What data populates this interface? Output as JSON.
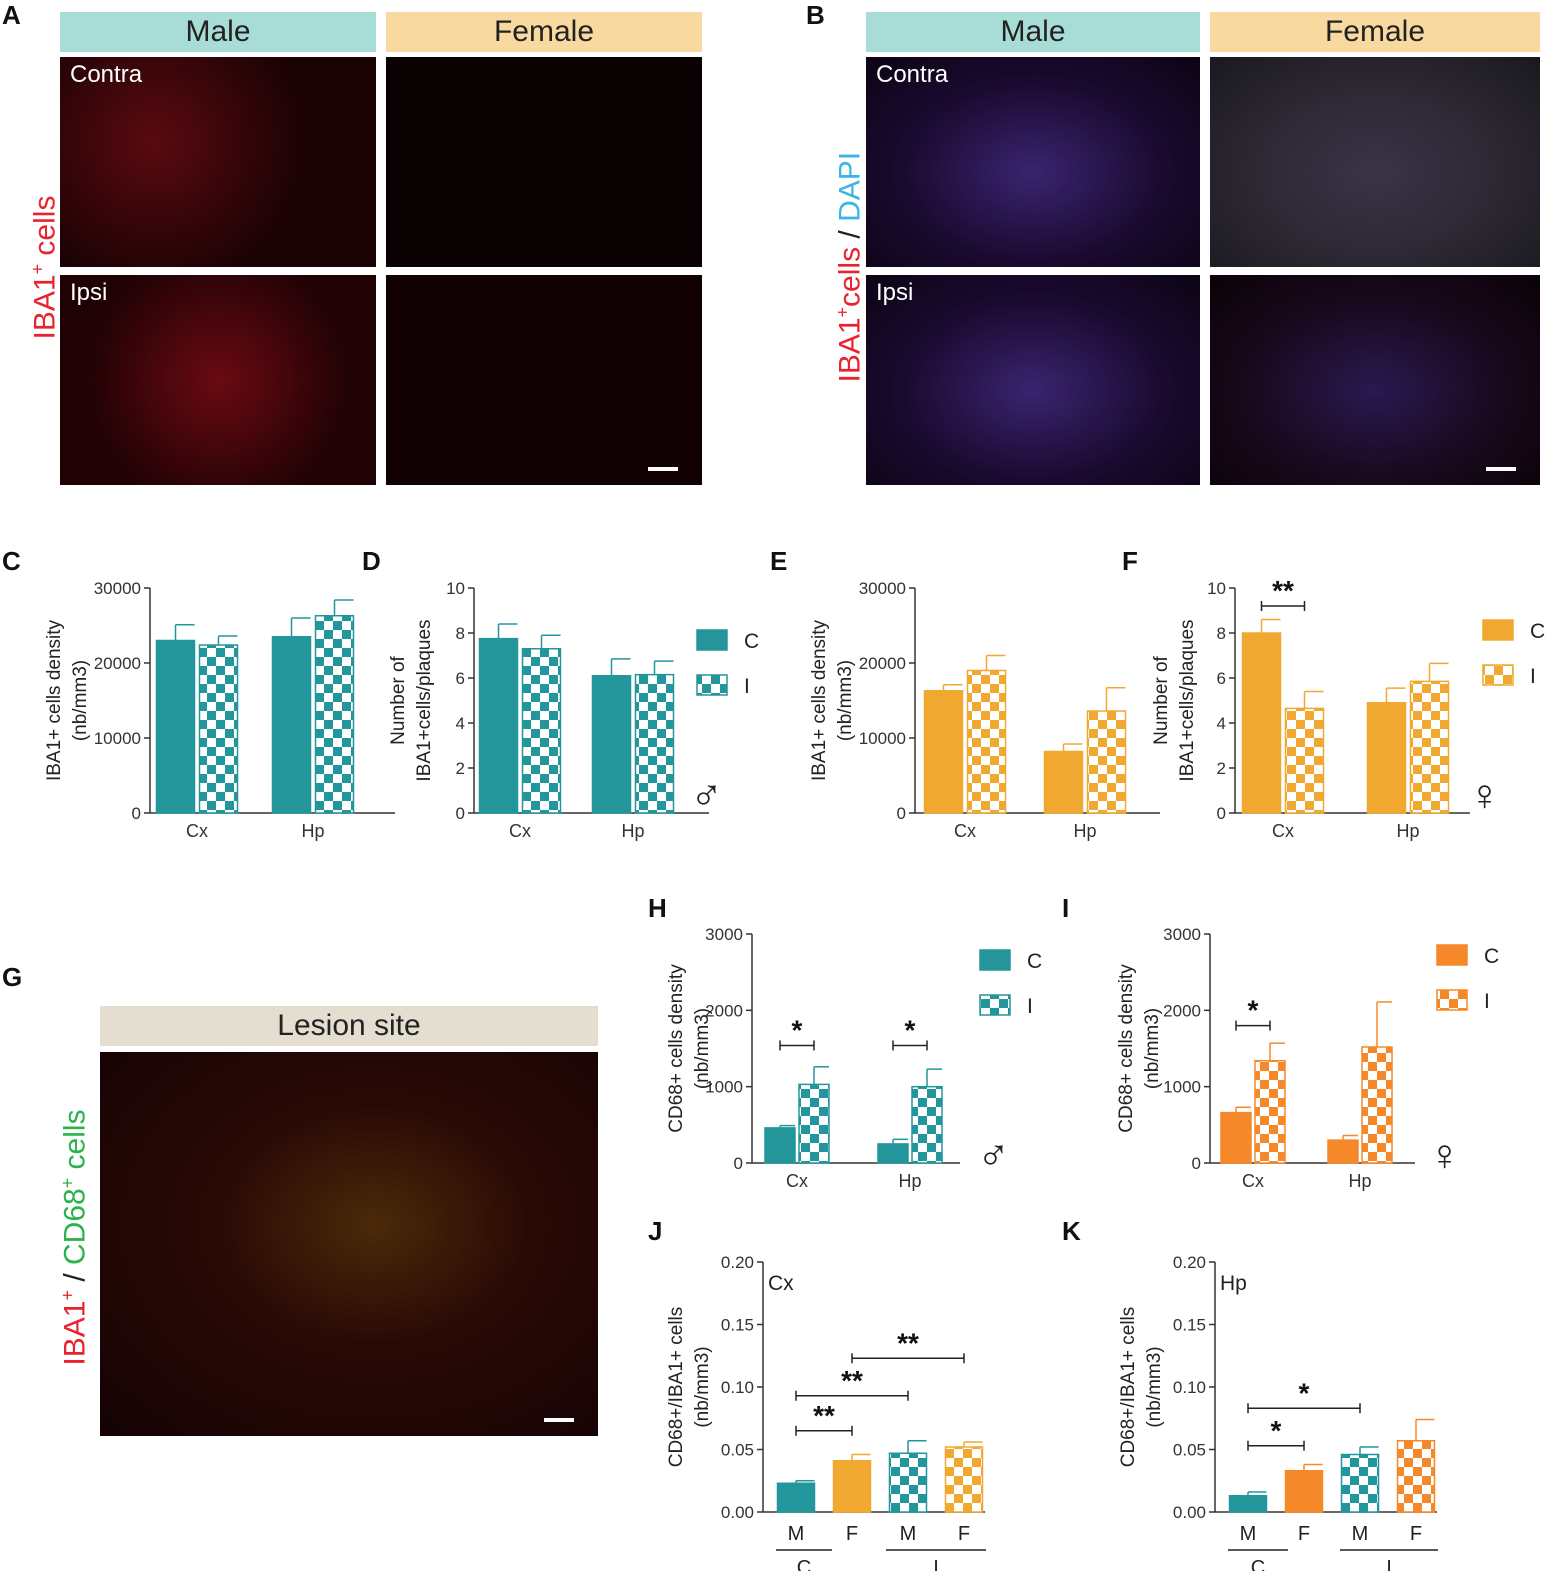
{
  "panels": {
    "A": {
      "letter": "A",
      "male": "Male",
      "female": "Female",
      "contra": "Contra",
      "ipsi": "Ipsi",
      "ylabel_main": "IBA1",
      "ylabel_sup": "+",
      "ylabel_rest": " cells"
    },
    "B": {
      "letter": "B",
      "male": "Male",
      "female": "Female",
      "contra": "Contra",
      "ipsi": "Ipsi",
      "ylabel_a": "IBA1",
      "ylabel_sup": "+",
      "ylabel_b": "cells",
      "ylabel_sep": " / ",
      "ylabel_c": "DAPI"
    },
    "G": {
      "letter": "G",
      "header": "Lesion site",
      "ylabel_a": "IBA1",
      "ylabel_sup1": "+",
      "ylabel_sep": " / ",
      "ylabel_b": "CD68",
      "ylabel_sup2": "+",
      "ylabel_c": " cells"
    }
  },
  "colors": {
    "teal": "#23969b",
    "gold": "#f0a830",
    "orange": "#f5892a",
    "red": "#e8232f",
    "blue": "#3ab4e6",
    "green": "#2cb24a"
  },
  "chart_data": [
    {
      "id": "C",
      "type": "bar",
      "color": "teal",
      "categories": [
        "Cx",
        "Hp"
      ],
      "series": [
        {
          "values": [
            23000,
            23500
          ],
          "errors": [
            2100,
            2500
          ],
          "pattern": "solid"
        },
        {
          "values": [
            22400,
            26300
          ],
          "errors": [
            1200,
            2100
          ],
          "pattern": "checker"
        }
      ],
      "ylim": [
        0,
        30000
      ],
      "ticks": [
        0,
        10000,
        20000,
        30000
      ],
      "ylabel_lines": [
        "IBA1+ cells density",
        "(nb/mm3)"
      ]
    },
    {
      "id": "D",
      "type": "bar",
      "color": "teal",
      "categories": [
        "Cx",
        "Hp"
      ],
      "series": [
        {
          "values": [
            7.75,
            6.1
          ],
          "errors": [
            0.65,
            0.75
          ],
          "pattern": "solid"
        },
        {
          "values": [
            7.3,
            6.15
          ],
          "errors": [
            0.6,
            0.6
          ],
          "pattern": "checker"
        }
      ],
      "ylim": [
        0,
        10
      ],
      "ticks": [
        0,
        2,
        4,
        6,
        8,
        10
      ],
      "ylabel_lines": [
        "Number of",
        "IBA1+cells/plaques"
      ],
      "legend": [
        "C",
        "I"
      ],
      "symbol": "♂"
    },
    {
      "id": "E",
      "type": "bar",
      "color": "gold",
      "categories": [
        "Cx",
        "Hp"
      ],
      "series": [
        {
          "values": [
            16300,
            8200
          ],
          "errors": [
            800,
            1000
          ],
          "pattern": "solid"
        },
        {
          "values": [
            19000,
            13600
          ],
          "errors": [
            2000,
            3100
          ],
          "pattern": "checker"
        }
      ],
      "ylim": [
        0,
        30000
      ],
      "ticks": [
        0,
        10000,
        20000,
        30000
      ],
      "ylabel_lines": [
        "IBA1+ cells density",
        "(nb/mm3)"
      ]
    },
    {
      "id": "F",
      "type": "bar",
      "color": "gold",
      "categories": [
        "Cx",
        "Hp"
      ],
      "series": [
        {
          "values": [
            8.0,
            4.9
          ],
          "errors": [
            0.6,
            0.65
          ],
          "pattern": "solid"
        },
        {
          "values": [
            4.65,
            5.85
          ],
          "errors": [
            0.75,
            0.8
          ],
          "pattern": "checker"
        }
      ],
      "ylim": [
        0,
        10
      ],
      "ticks": [
        0,
        2,
        4,
        6,
        8,
        10
      ],
      "ylabel_lines": [
        "Number of",
        "IBA1+cells/plaques"
      ],
      "legend": [
        "C",
        "I"
      ],
      "symbol": "♀",
      "sig": [
        {
          "label": "**",
          "from": [
            0,
            0
          ],
          "to": [
            0,
            1
          ],
          "y": 9.2
        }
      ]
    },
    {
      "id": "H",
      "type": "bar",
      "color": "teal",
      "categories": [
        "Cx",
        "Hp"
      ],
      "series": [
        {
          "values": [
            460,
            250
          ],
          "errors": [
            30,
            60
          ],
          "pattern": "solid"
        },
        {
          "values": [
            1030,
            1000
          ],
          "errors": [
            230,
            230
          ],
          "pattern": "checker"
        }
      ],
      "ylim": [
        0,
        3000
      ],
      "ticks": [
        0,
        1000,
        2000,
        3000
      ],
      "ylabel_lines": [
        "CD68+ cells density",
        "(nb/mm3)"
      ],
      "legend": [
        "C",
        "I"
      ],
      "symbol": "♂",
      "sig": [
        {
          "label": "*",
          "from": [
            0,
            0
          ],
          "to": [
            0,
            1
          ],
          "y": 1540
        },
        {
          "label": "*",
          "from": [
            1,
            0
          ],
          "to": [
            1,
            1
          ],
          "y": 1540
        }
      ]
    },
    {
      "id": "I",
      "type": "bar",
      "color": "orange",
      "categories": [
        "Cx",
        "Hp"
      ],
      "series": [
        {
          "values": [
            660,
            300
          ],
          "errors": [
            70,
            60
          ],
          "pattern": "solid"
        },
        {
          "values": [
            1340,
            1520
          ],
          "errors": [
            230,
            590
          ],
          "pattern": "checker"
        }
      ],
      "ylim": [
        0,
        3000
      ],
      "ticks": [
        0,
        1000,
        2000,
        3000
      ],
      "ylabel_lines": [
        "CD68+ cells density",
        "(nb/mm3)"
      ],
      "legend": [
        "C",
        "I"
      ],
      "symbol": "♀",
      "sig": [
        {
          "label": "*",
          "from": [
            0,
            0
          ],
          "to": [
            0,
            1
          ],
          "y": 1800
        }
      ]
    },
    {
      "id": "J",
      "type": "bar",
      "annotation": "Cx",
      "categories": [
        "M",
        "F",
        "M",
        "F"
      ],
      "groups": [
        "C",
        "I"
      ],
      "values": [
        0.023,
        0.041,
        0.047,
        0.052
      ],
      "errors": [
        0.002,
        0.005,
        0.01,
        0.004
      ],
      "colors": [
        "teal",
        "gold",
        "teal",
        "gold"
      ],
      "patterns": [
        "solid",
        "solid",
        "checker",
        "checker"
      ],
      "ylim": [
        0,
        0.2
      ],
      "ticks": [
        "0.00",
        "0.05",
        "0.10",
        "0.15",
        "0.20"
      ],
      "ylabel_lines": [
        "CD68+/IBA1+ cells",
        "(nb/mm3)"
      ],
      "sig": [
        {
          "label": "**",
          "from": 0,
          "to": 1,
          "y": 0.065
        },
        {
          "label": "**",
          "from": 0,
          "to": 2,
          "y": 0.093
        },
        {
          "label": "**",
          "from": 1,
          "to": 3,
          "y": 0.123
        }
      ]
    },
    {
      "id": "K",
      "type": "bar",
      "annotation": "Hp",
      "categories": [
        "M",
        "F",
        "M",
        "F"
      ],
      "groups": [
        "C",
        "I"
      ],
      "values": [
        0.013,
        0.033,
        0.046,
        0.057
      ],
      "errors": [
        0.003,
        0.005,
        0.006,
        0.017
      ],
      "colors": [
        "teal",
        "orange",
        "teal",
        "orange"
      ],
      "patterns": [
        "solid",
        "solid",
        "checker",
        "checker"
      ],
      "ylim": [
        0,
        0.2
      ],
      "ticks": [
        "0.00",
        "0.05",
        "0.10",
        "0.15",
        "0.20"
      ],
      "ylabel_lines": [
        "CD68+/IBA1+ cells",
        "(nb/mm3)"
      ],
      "sig": [
        {
          "label": "*",
          "from": 0,
          "to": 1,
          "y": 0.053
        },
        {
          "label": "*",
          "from": 0,
          "to": 2,
          "y": 0.083
        }
      ]
    }
  ]
}
